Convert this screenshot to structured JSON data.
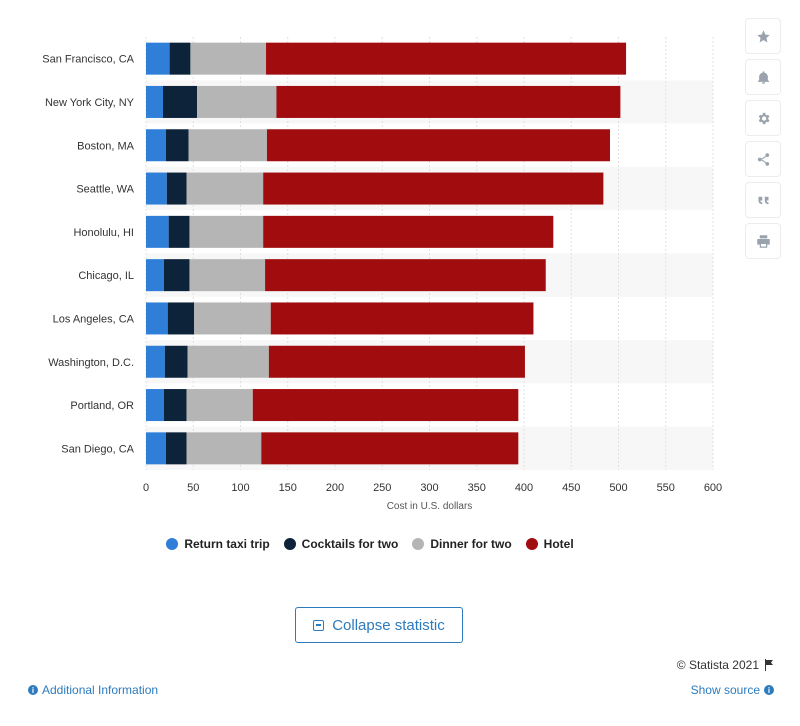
{
  "chart_data": {
    "type": "bar",
    "orientation": "horizontal",
    "stacked": true,
    "categories": [
      "San Francisco, CA",
      "New York City, NY",
      "Boston, MA",
      "Seattle, WA",
      "Honolulu, HI",
      "Chicago, IL",
      "Los Angeles, CA",
      "Washington, D.C.",
      "Portland, OR",
      "San Diego, CA"
    ],
    "series": [
      {
        "name": "Return taxi trip",
        "color": "#2f7ed8",
        "values": [
          25,
          18,
          21,
          22,
          24,
          19,
          23,
          20,
          19,
          21
        ]
      },
      {
        "name": "Cocktails for two",
        "color": "#0d233a",
        "values": [
          22,
          36,
          24,
          21,
          22,
          27,
          28,
          24,
          24,
          22
        ]
      },
      {
        "name": "Dinner for two",
        "color": "#b5b5b5",
        "values": [
          80,
          84,
          83,
          81,
          78,
          80,
          81,
          86,
          70,
          79
        ]
      },
      {
        "name": "Hotel",
        "color": "#a10d0e",
        "values": [
          381,
          364,
          363,
          360,
          307,
          297,
          278,
          271,
          281,
          272
        ]
      }
    ],
    "xlabel": "Cost in U.S. dollars",
    "xlim": [
      0,
      600
    ],
    "xticks": [
      0,
      50,
      100,
      150,
      200,
      250,
      300,
      350,
      400,
      450,
      500,
      550,
      600
    ],
    "grid": true,
    "legend_position": "bottom"
  },
  "toolbar": {
    "items": [
      "star-icon",
      "bell-icon",
      "gear-icon",
      "share-icon",
      "quote-icon",
      "print-icon"
    ]
  },
  "footer": {
    "collapse_label": "Collapse statistic",
    "copyright": "© Statista 2021",
    "additional_info": "Additional Information",
    "show_source": "Show source"
  }
}
